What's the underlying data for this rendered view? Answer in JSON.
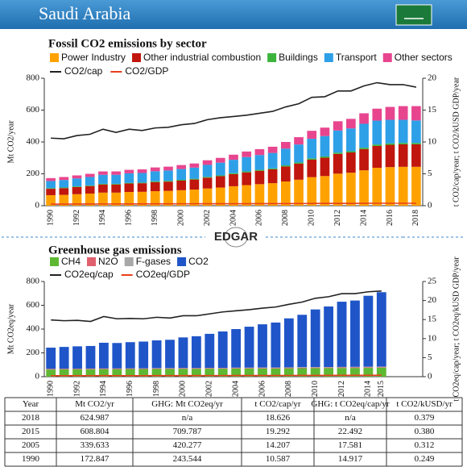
{
  "header": {
    "title": "Saudi Arabia"
  },
  "logo": "EDGAR",
  "chart_data": [
    {
      "type": "bar",
      "stacked": true,
      "title": "Fossil CO2 emissions by sector",
      "ylabel": "Mt CO2/year",
      "y2label": "t CO2/cap/year; t CO2/kUSD GDP/year",
      "categories": [
        "1990",
        null,
        "1992",
        null,
        "1994",
        null,
        "1996",
        null,
        "1998",
        null,
        "2000",
        null,
        "2002",
        null,
        "2004",
        null,
        "2006",
        null,
        "2008",
        null,
        "2010",
        null,
        "2012",
        null,
        "2014",
        null,
        "2016",
        null,
        "2018"
      ],
      "series": [
        {
          "name": "Power Industry",
          "color": "#ffa200",
          "values": [
            66,
            68,
            72,
            76,
            82,
            82,
            86,
            87,
            91,
            93,
            97,
            101,
            108,
            114,
            122,
            129,
            135,
            141,
            152,
            163,
            179,
            186,
            201,
            207,
            222,
            238,
            242,
            244,
            244
          ]
        },
        {
          "name": "Other industrial combustion",
          "color": "#c0160e",
          "values": [
            40,
            42,
            45,
            47,
            51,
            51,
            53,
            54,
            57,
            58,
            60,
            63,
            68,
            71,
            76,
            80,
            84,
            87,
            94,
            101,
            110,
            115,
            124,
            127,
            133,
            137,
            140,
            141,
            141
          ]
        },
        {
          "name": "Buildings",
          "color": "#3cb43c",
          "values": [
            4,
            4,
            4,
            4,
            4,
            4,
            4,
            4,
            5,
            5,
            5,
            5,
            5,
            5,
            6,
            6,
            6,
            6,
            7,
            7,
            8,
            8,
            8,
            8,
            9,
            9,
            9,
            9,
            9
          ]
        },
        {
          "name": "Transport",
          "color": "#2ea0e8",
          "values": [
            45,
            47,
            50,
            53,
            57,
            57,
            60,
            60,
            63,
            65,
            68,
            70,
            75,
            80,
            84,
            90,
            93,
            97,
            105,
            113,
            123,
            128,
            139,
            143,
            150,
            150,
            148,
            145,
            141
          ]
        },
        {
          "name": "Other sectors",
          "color": "#e8458f",
          "values": [
            18,
            19,
            19,
            20,
            21,
            21,
            22,
            23,
            24,
            24,
            25,
            26,
            29,
            30,
            32,
            35,
            37,
            39,
            42,
            46,
            50,
            53,
            58,
            60,
            66,
            75,
            81,
            86,
            90
          ]
        },
        {
          "name": "CO2/cap",
          "type": "line",
          "axis": "y2",
          "color": "#222222",
          "values": [
            10.6,
            10.5,
            11,
            11.2,
            12,
            11.5,
            12,
            11.8,
            12.2,
            12.3,
            12.7,
            12.9,
            13.5,
            13.8,
            14,
            14.2,
            14.5,
            14.8,
            15.5,
            16,
            17,
            17.1,
            18,
            18,
            18.8,
            19.3,
            19,
            19,
            18.6
          ]
        },
        {
          "name": "CO2/GDP",
          "type": "line",
          "axis": "y2",
          "color": "#e8401c",
          "values": [
            0.25,
            0.25,
            0.26,
            0.26,
            0.27,
            0.27,
            0.28,
            0.28,
            0.29,
            0.29,
            0.3,
            0.3,
            0.31,
            0.31,
            0.31,
            0.31,
            0.32,
            0.32,
            0.33,
            0.34,
            0.35,
            0.35,
            0.36,
            0.36,
            0.37,
            0.38,
            0.38,
            0.38,
            0.38
          ]
        }
      ],
      "ylim": [
        0,
        800
      ],
      "yticks": [
        0,
        200,
        400,
        600,
        800
      ],
      "y2lim": [
        0,
        20
      ],
      "y2ticks": [
        0,
        5,
        10,
        15,
        20
      ]
    },
    {
      "type": "bar",
      "stacked": true,
      "title": "Greenhouse gas emissions",
      "ylabel": "Mt CO2eq/year",
      "y2label": "t CO2eq/cap/year; t CO2eq/kUSD GDP/year",
      "categories": [
        "1990",
        null,
        "1992",
        null,
        "1994",
        null,
        "1996",
        null,
        "1998",
        null,
        "2000",
        null,
        "2002",
        null,
        "2004",
        null,
        "2006",
        null,
        "2008",
        null,
        "2010",
        null,
        "2012",
        null,
        "2014",
        "2015"
      ],
      "series": [
        {
          "name": "CH4",
          "color": "#5fb832",
          "values": [
            60,
            61,
            61,
            62,
            63,
            63,
            64,
            64,
            65,
            65,
            66,
            66,
            67,
            67,
            68,
            68,
            69,
            69,
            70,
            71,
            72,
            72,
            73,
            73,
            74,
            75
          ]
        },
        {
          "name": "N2O",
          "color": "#e0606e",
          "values": [
            5,
            5,
            5,
            5,
            5,
            5,
            5,
            5,
            5,
            5,
            5,
            5,
            5,
            5,
            5,
            5,
            5,
            5,
            5,
            5,
            5,
            5,
            5,
            5,
            5,
            5
          ]
        },
        {
          "name": "F-gases",
          "color": "#a8a8a8",
          "values": [
            1,
            1,
            1,
            1,
            1,
            1,
            1,
            1,
            2,
            2,
            2,
            2,
            2,
            2,
            3,
            3,
            3,
            3,
            3,
            4,
            4,
            4,
            4,
            5,
            5,
            5
          ]
        },
        {
          "name": "CO2",
          "color": "#1f55c8",
          "values": [
            178,
            183,
            188,
            190,
            216,
            214,
            220,
            225,
            233,
            238,
            257,
            267,
            286,
            306,
            324,
            344,
            363,
            378,
            412,
            440,
            484,
            509,
            548,
            557,
            596,
            625
          ]
        },
        {
          "name": "CO2eq/cap",
          "type": "line",
          "axis": "y2",
          "color": "#222222",
          "values": [
            14.9,
            14.7,
            14.8,
            14.5,
            15.8,
            15.2,
            15.3,
            15.2,
            15.6,
            15.4,
            16,
            16,
            16.5,
            17,
            17.3,
            17.6,
            18,
            18.3,
            19,
            19.6,
            20.6,
            21,
            21.8,
            21.8,
            22.3,
            22.5
          ]
        },
        {
          "name": "CO2eq/GDP",
          "type": "line",
          "axis": "y2",
          "color": "#e8401c",
          "values": [
            0.25,
            0.25,
            0.25,
            0.25,
            0.27,
            0.26,
            0.26,
            0.26,
            0.27,
            0.27,
            0.28,
            0.28,
            0.29,
            0.29,
            0.3,
            0.31,
            0.31,
            0.31,
            0.32,
            0.33,
            0.34,
            0.34,
            0.35,
            0.35,
            0.36,
            0.38
          ]
        }
      ],
      "ylim": [
        0,
        800
      ],
      "yticks": [
        0,
        200,
        400,
        600,
        800
      ],
      "y2lim": [
        0,
        25
      ],
      "y2ticks": [
        0,
        5,
        10,
        15,
        20,
        25
      ]
    }
  ],
  "table": {
    "header": [
      "Year",
      "Mt CO2/yr",
      "GHG: Mt CO2eq/yr",
      "t CO2/cap/yr",
      "GHG: t CO2eq/cap/yr",
      "t CO2/kUSD/yr"
    ],
    "rows": [
      [
        "2018",
        "624.987",
        "n/a",
        "18.626",
        "n/a",
        "0.379"
      ],
      [
        "2015",
        "608.804",
        "709.787",
        "19.292",
        "22.492",
        "0.380"
      ],
      [
        "2005",
        "339.633",
        "420.277",
        "14.207",
        "17.581",
        "0.312"
      ],
      [
        "1990",
        "172.847",
        "243.544",
        "10.587",
        "14.917",
        "0.249"
      ]
    ]
  }
}
